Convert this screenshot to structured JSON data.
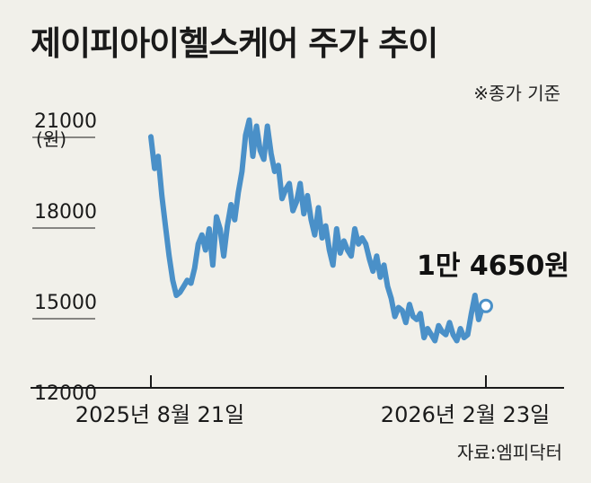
{
  "chart_data": {
    "type": "line",
    "title": "제이피아이헬스케어 주가 추이",
    "note": "※종가 기준",
    "source": "자료:엠피닥터",
    "unit": "(원)",
    "ylim": [
      12000,
      21000
    ],
    "y_ticks": [
      {
        "value": 21000,
        "label": "21000"
      },
      {
        "value": 18000,
        "label": "18000"
      },
      {
        "value": 15000,
        "label": "15000"
      },
      {
        "value": 12000,
        "label": "12000"
      }
    ],
    "x_ticks": [
      "2025년 8월 21일",
      "2026년 2월 23일"
    ],
    "last_value_label": "1만 4650원",
    "color": "#4a90c8",
    "series": [
      {
        "name": "종가",
        "values": [
          20250,
          19200,
          19600,
          18300,
          17300,
          16300,
          15500,
          15000,
          15100,
          15300,
          15500,
          15400,
          15900,
          16700,
          17000,
          16500,
          17200,
          16000,
          17600,
          17200,
          16300,
          17300,
          18000,
          17500,
          18400,
          19100,
          20300,
          20800,
          19600,
          20600,
          19800,
          19500,
          20600,
          19700,
          19100,
          19300,
          18200,
          18500,
          18700,
          17800,
          18100,
          18700,
          17700,
          18300,
          17500,
          17000,
          17900,
          16900,
          17300,
          16500,
          16000,
          17200,
          16400,
          16800,
          16500,
          16300,
          17200,
          16700,
          16900,
          16700,
          16200,
          15800,
          16300,
          15600,
          16000,
          15300,
          14900,
          14300,
          14600,
          14500,
          14100,
          14700,
          14300,
          14200,
          14400,
          13600,
          13900,
          13700,
          13500,
          14000,
          13800,
          13700,
          14100,
          13700,
          13500,
          13900,
          13600,
          13700,
          14400,
          15000,
          14200,
          14600,
          14650
        ]
      }
    ]
  }
}
